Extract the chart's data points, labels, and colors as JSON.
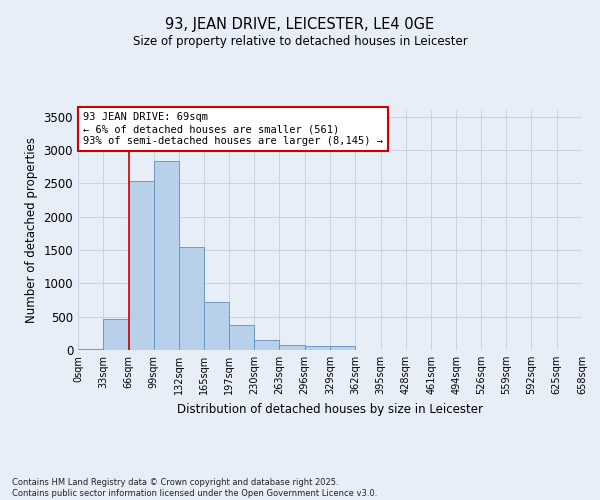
{
  "title": "93, JEAN DRIVE, LEICESTER, LE4 0GE",
  "subtitle": "Size of property relative to detached houses in Leicester",
  "xlabel": "Distribution of detached houses by size in Leicester",
  "ylabel": "Number of detached properties",
  "footer_line1": "Contains HM Land Registry data © Crown copyright and database right 2025.",
  "footer_line2": "Contains public sector information licensed under the Open Government Licence v3.0.",
  "annotation_line1": "93 JEAN DRIVE: 69sqm",
  "annotation_line2": "← 6% of detached houses are smaller (561)",
  "annotation_line3": "93% of semi-detached houses are larger (8,145) →",
  "bin_edges": [
    0,
    33,
    66,
    99,
    132,
    165,
    197,
    230,
    263,
    296,
    329,
    362,
    395,
    428,
    461,
    494,
    526,
    559,
    592,
    625,
    658
  ],
  "bin_counts": [
    20,
    470,
    2530,
    2840,
    1540,
    720,
    380,
    145,
    80,
    60,
    60,
    0,
    0,
    0,
    0,
    0,
    0,
    0,
    0,
    0
  ],
  "bar_color": "#b8d0ea",
  "bar_edge_color": "#6090c0",
  "vline_color": "#cc0000",
  "vline_x": 66,
  "annotation_box_color": "#cc0000",
  "annotation_box_facecolor": "#ffffff",
  "grid_color": "#c8d4e4",
  "background_color": "#e8eef8",
  "ylim": [
    0,
    3600
  ],
  "yticks": [
    0,
    500,
    1000,
    1500,
    2000,
    2500,
    3000,
    3500
  ],
  "title_fontsize": 10,
  "subtitle_fontsize": 9
}
